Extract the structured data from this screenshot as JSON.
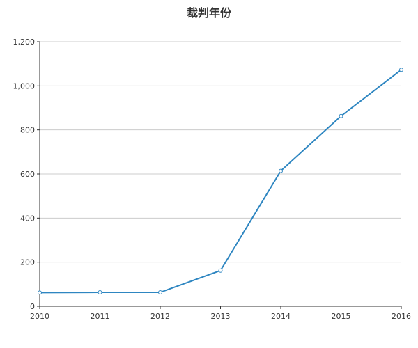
{
  "chart_data": {
    "type": "line",
    "title": "裁判年份",
    "xlabel": "",
    "ylabel": "",
    "categories": [
      "2010",
      "2011",
      "2012",
      "2013",
      "2014",
      "2015",
      "2016"
    ],
    "series": [
      {
        "values": [
          62,
          63,
          63,
          162,
          614,
          863,
          1073
        ],
        "color": "#2e86c1"
      }
    ],
    "yticks": [
      0,
      200,
      400,
      600,
      800,
      1000,
      1200
    ],
    "ytick_labels": [
      "0",
      "200",
      "400",
      "600",
      "800",
      "1,000",
      "1,200"
    ],
    "ylim": [
      0,
      1200
    ],
    "grid": true,
    "legend": "none"
  }
}
